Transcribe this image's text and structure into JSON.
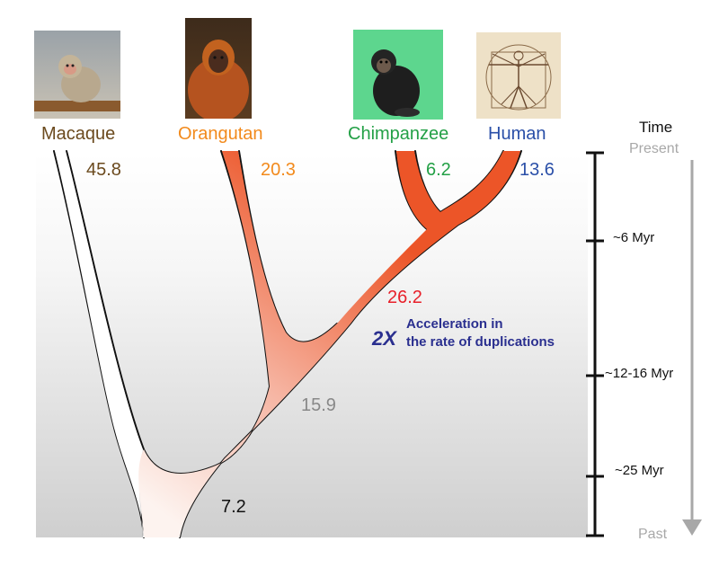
{
  "species": [
    {
      "name": "Macaque",
      "icon": "macaque-photo",
      "color": "#6b4a1e"
    },
    {
      "name": "Orangutan",
      "icon": "orangutan-photo",
      "color": "#f28a1c"
    },
    {
      "name": "Chimpanzee",
      "icon": "chimpanzee-photo",
      "color": "#23a046"
    },
    {
      "name": "Human",
      "icon": "vitruvian-man-drawing",
      "color": "#2a4fa8"
    }
  ],
  "branch_rates": [
    {
      "branch": "Macaque",
      "value": "45.8",
      "color": "#6b4a1e"
    },
    {
      "branch": "Orangutan",
      "value": "20.3",
      "color": "#f28a1c"
    },
    {
      "branch": "Chimpanzee",
      "value": "6.2",
      "color": "#23a046"
    },
    {
      "branch": "Human",
      "value": "13.6",
      "color": "#2a4fa8"
    },
    {
      "branch": "human-chimp ancestor",
      "value": "26.2",
      "color": "#e8202a"
    },
    {
      "branch": "great-ape ancestor",
      "value": "15.9",
      "color": "#888888"
    },
    {
      "branch": "root",
      "value": "7.2",
      "color": "#111111"
    }
  ],
  "annotation": {
    "multiplier": "2X",
    "line1": "Acceleration in",
    "line2": "the rate of duplications",
    "color": "#2a2f8f"
  },
  "time_axis": {
    "title": "Time",
    "top": "Present",
    "bottom": "Past",
    "ticks": [
      "~6 Myr",
      "~12-16 Myr",
      "~25 Myr"
    ]
  }
}
